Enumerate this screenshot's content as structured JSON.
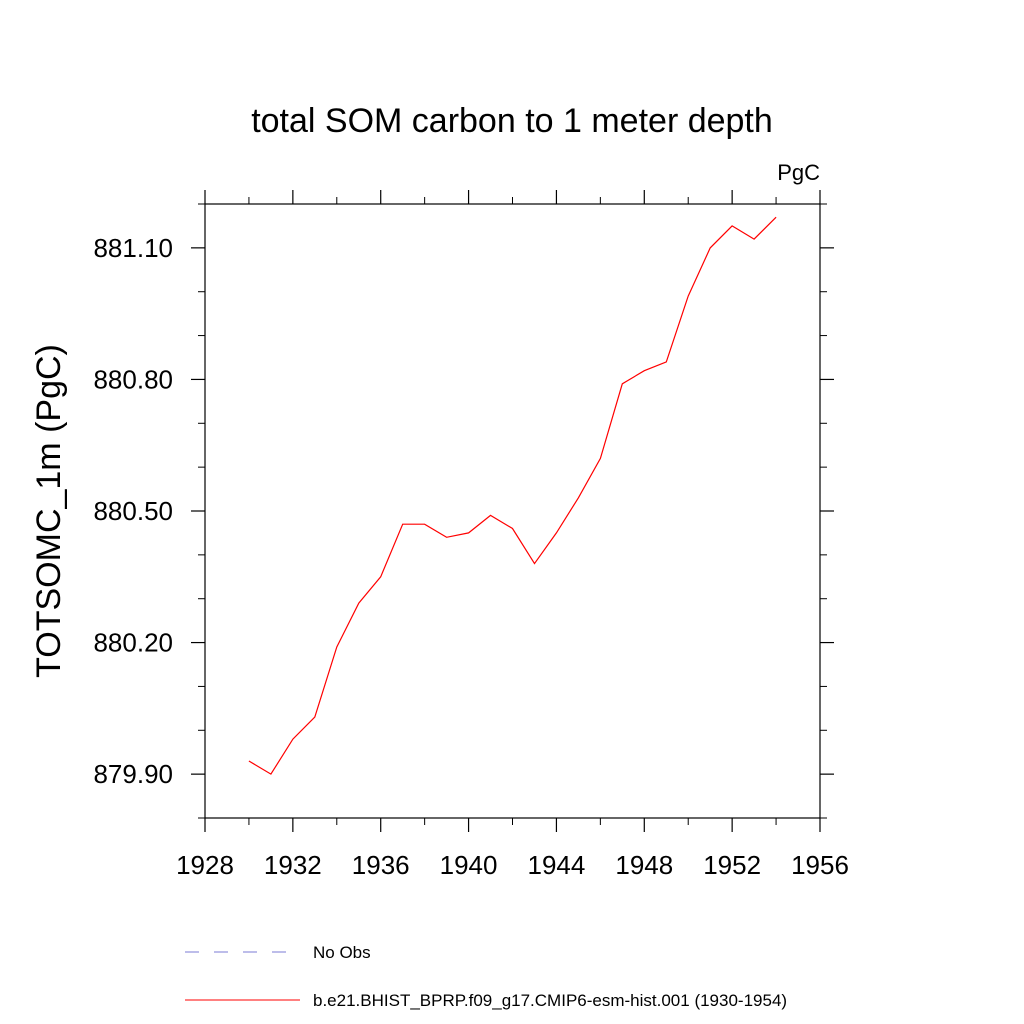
{
  "chart_data": {
    "type": "line",
    "title": "total SOM carbon to 1 meter depth",
    "units_label": "PgC",
    "xlabel": "",
    "ylabel": "TOTSOMC_1m  (PgC)",
    "xlim": [
      1928,
      1956
    ],
    "ylim": [
      879.8,
      881.2
    ],
    "xticks": [
      1928,
      1932,
      1936,
      1940,
      1944,
      1948,
      1952,
      1956
    ],
    "xtick_labels": [
      "1928",
      "1932",
      "1936",
      "1940",
      "1944",
      "1948",
      "1952",
      "1956"
    ],
    "xminor_ticks": [
      1930,
      1934,
      1938,
      1942,
      1946,
      1950,
      1954
    ],
    "yticks": [
      879.9,
      880.2,
      880.5,
      880.8,
      881.1
    ],
    "ytick_labels": [
      "879.90",
      "880.20",
      "880.50",
      "880.80",
      "881.10"
    ],
    "yminor_ticks": [
      879.8,
      880.0,
      880.1,
      880.3,
      880.4,
      880.6,
      880.7,
      880.9,
      881.0,
      881.2
    ],
    "grid": false,
    "series": [
      {
        "name": "b.e21.BHIST_BPRP.f09_g17.CMIP6-esm-hist.001 (1930-1954)",
        "color": "#ff0000",
        "style": "solid",
        "x": [
          1930,
          1931,
          1932,
          1933,
          1934,
          1935,
          1936,
          1937,
          1938,
          1939,
          1940,
          1941,
          1942,
          1943,
          1944,
          1945,
          1946,
          1947,
          1948,
          1949,
          1950,
          1951,
          1952,
          1953,
          1954
        ],
        "y": [
          879.93,
          879.9,
          879.98,
          880.03,
          880.19,
          880.29,
          880.35,
          880.47,
          880.47,
          880.44,
          880.45,
          880.49,
          880.46,
          880.38,
          880.45,
          880.53,
          880.62,
          880.79,
          880.82,
          880.84,
          880.99,
          881.1,
          881.15,
          881.12,
          881.17
        ]
      }
    ],
    "legend": {
      "placement": "bottom",
      "entries": [
        {
          "label": "No Obs",
          "color": "#7b7bd6",
          "style": "dashed"
        },
        {
          "label": "b.e21.BHIST_BPRP.f09_g17.CMIP6-esm-hist.001 (1930-1954)",
          "color": "#ff0000",
          "style": "solid"
        }
      ]
    }
  }
}
